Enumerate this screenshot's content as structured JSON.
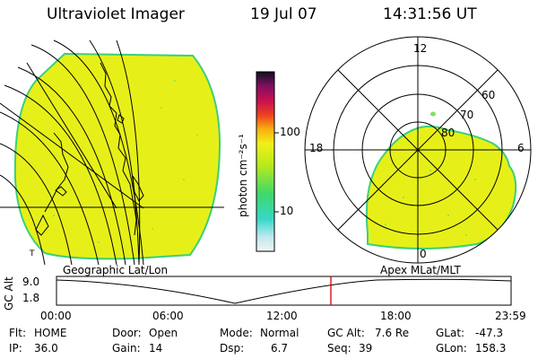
{
  "header": {
    "title": "Ultraviolet Imager",
    "date": "19 Jul 07",
    "time": "14:31:56 UT"
  },
  "colorbar": {
    "label": "photon cm⁻²s⁻¹",
    "ticks": [
      "100",
      "10"
    ],
    "scale": "log"
  },
  "polar_plot": {
    "mlt_labels": [
      "12",
      "18",
      "6",
      "0"
    ],
    "lat_labels": [
      "60",
      "70",
      "80"
    ]
  },
  "captions": {
    "left": "Geographic Lat/Lon",
    "right": "Apex MLat/MLT"
  },
  "altitude_plot": {
    "ylabel": "GC Alt",
    "yticks": [
      "9.0",
      "1.8"
    ],
    "xticks": [
      "00:00",
      "06:00",
      "12:00",
      "18:00",
      "23:59"
    ],
    "marker_time": "14:31"
  },
  "status": {
    "flt_label": "Flt:",
    "flt_value": "HOME",
    "ip_label": "IP:",
    "ip_value": "36.0",
    "door_label": "Door:",
    "door_value": "Open",
    "gain_label": "Gain:",
    "gain_value": "14",
    "mode_label": "Mode:",
    "mode_value": "Normal",
    "dsp_label": "Dsp:",
    "dsp_value": "6.7",
    "gcalt_label": "GC Alt:",
    "gcalt_value": "7.6 Re",
    "seq_label": "Seq:",
    "seq_value": "39",
    "glat_label": "GLat:",
    "glat_value": "-47.3",
    "glon_label": "GLon:",
    "glon_value": "158.3"
  },
  "colors": {
    "fill": "#e6f018",
    "edge": "#3ccf7a",
    "marker": "#d00000"
  }
}
